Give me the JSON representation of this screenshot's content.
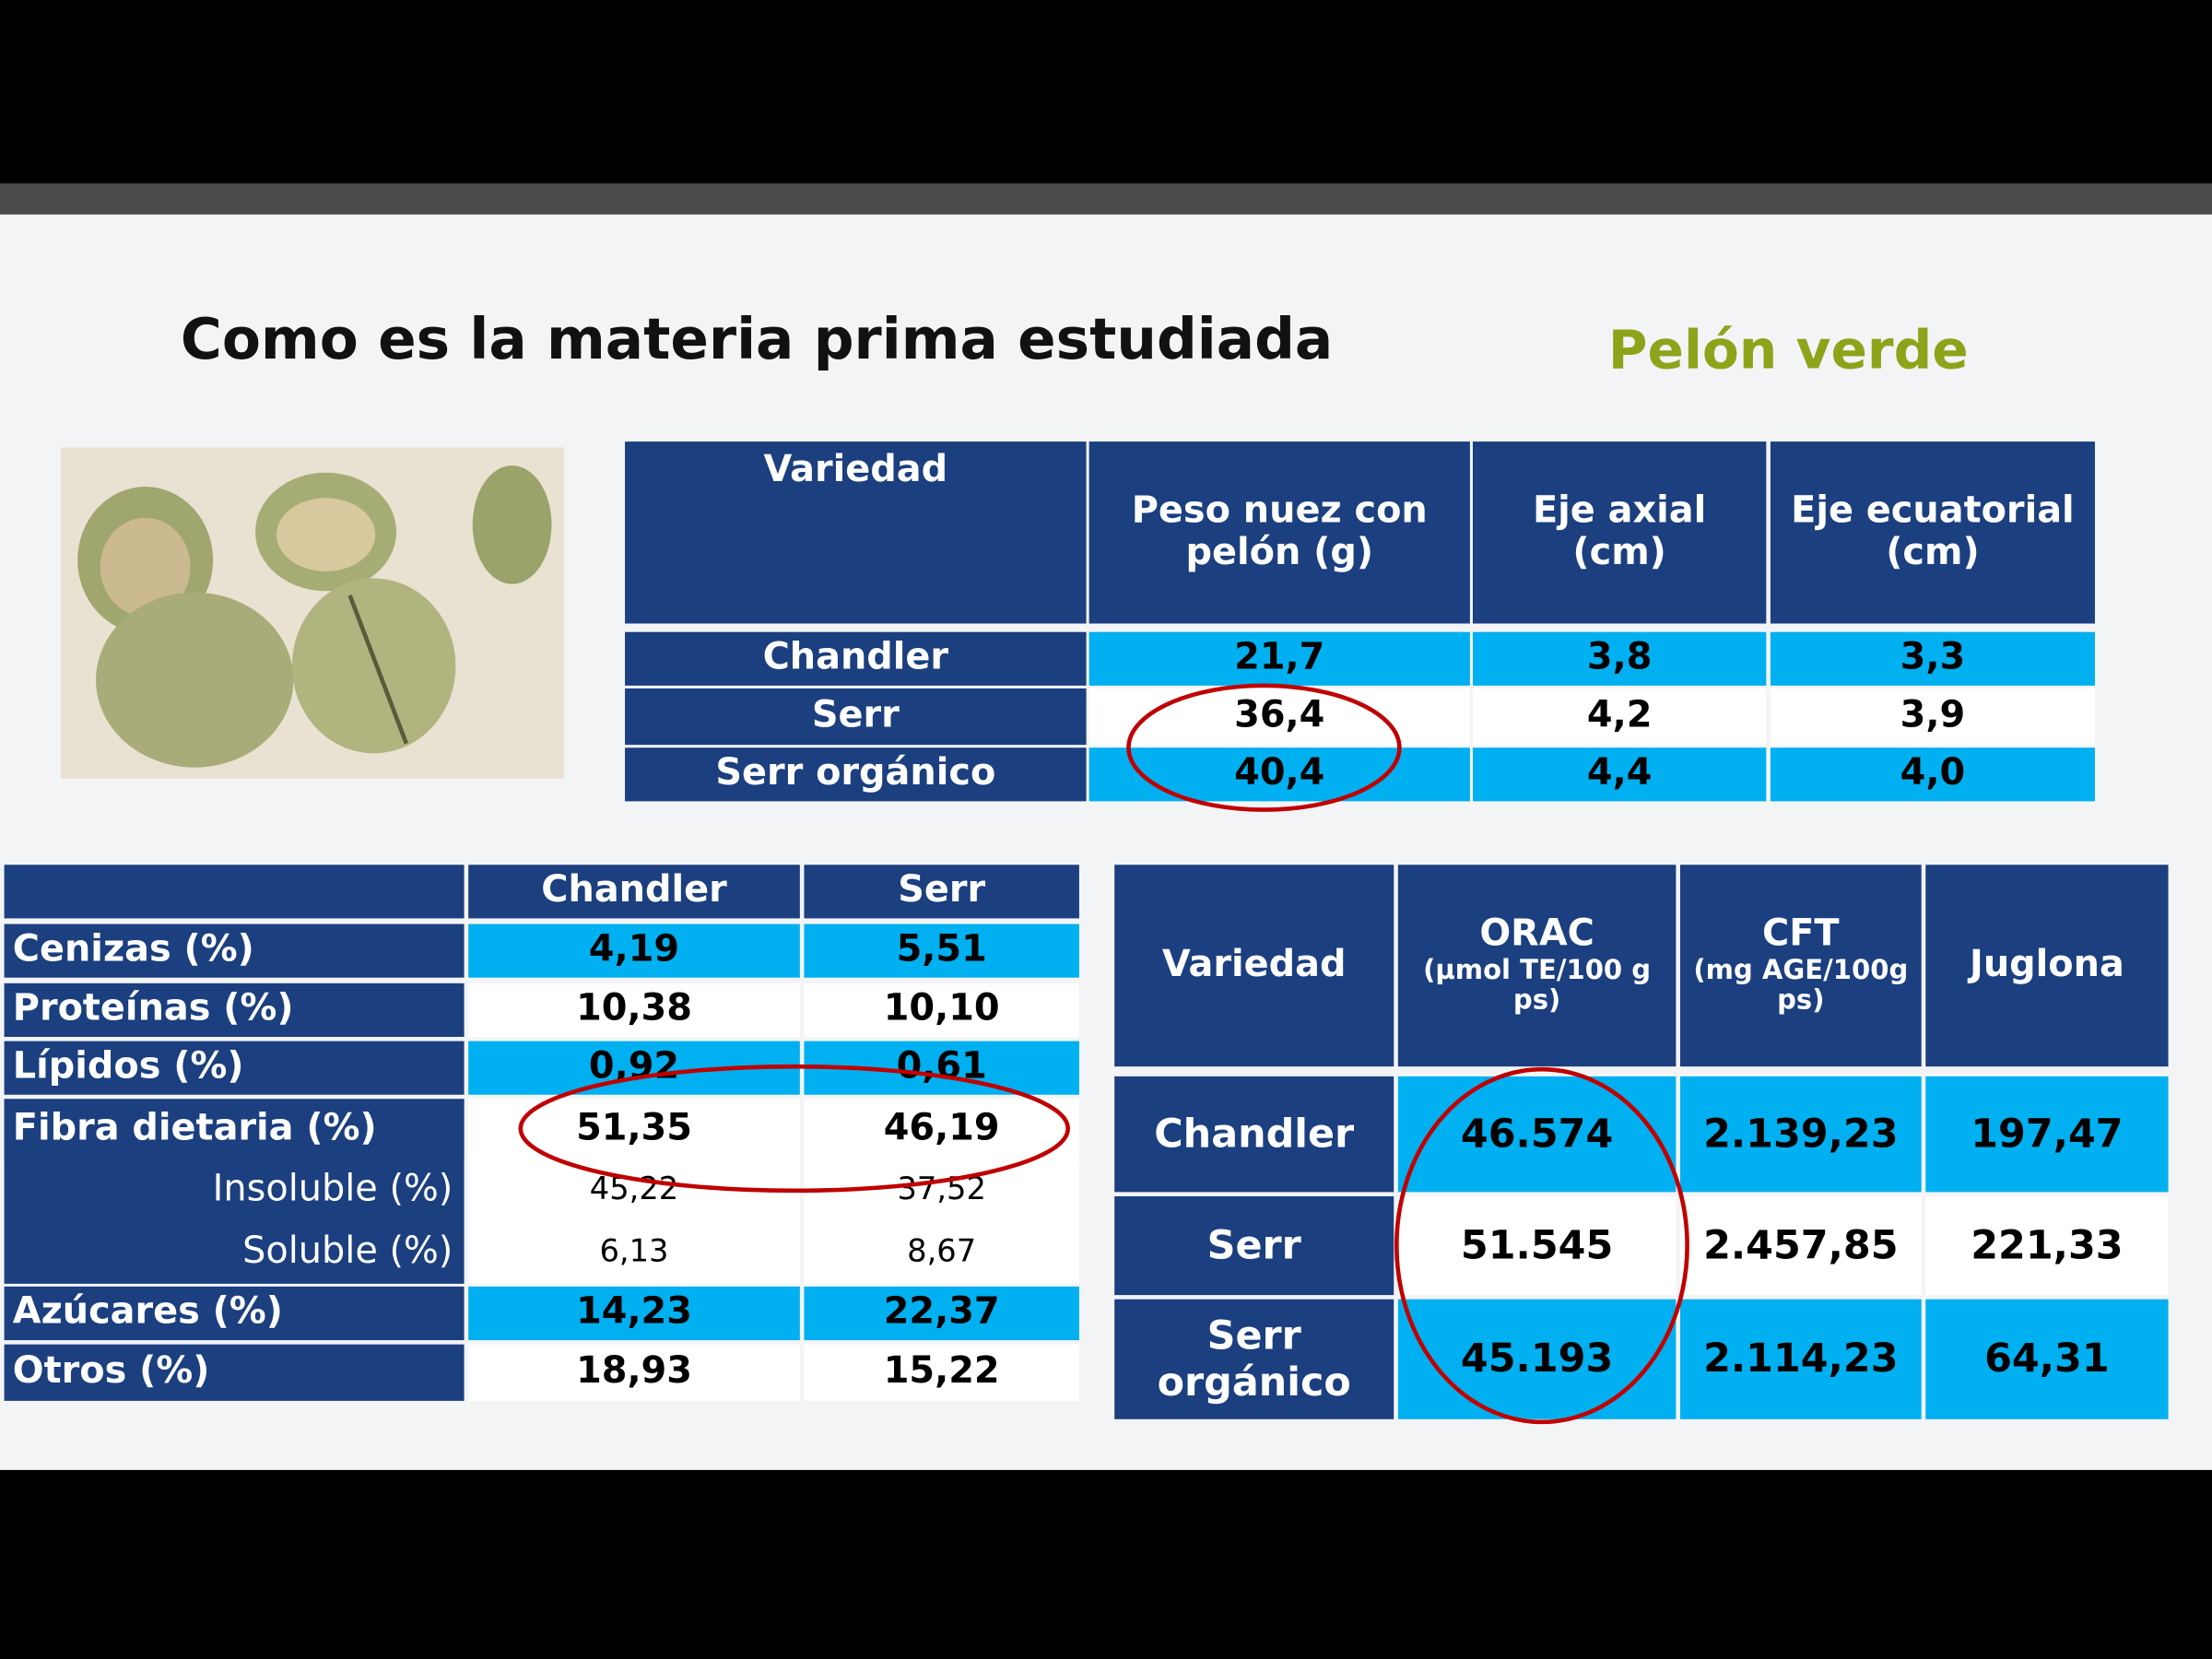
{
  "slide": {
    "title": "Como es la materia prima estudiada",
    "subtitle": "Pelón verde",
    "dimensions_table": {
      "header": [
        "Variedad",
        "Peso nuez con pelón (g)",
        "Eje axial (cm)",
        "Eje ecuatorial (cm)"
      ],
      "rows": [
        [
          "Chandler",
          "21,7",
          "3,8",
          "3,3"
        ],
        [
          "Serr",
          "36,4",
          "4,2",
          "3,9"
        ],
        [
          "Serr orgánico",
          "40,4",
          "4,4",
          "4,0"
        ]
      ]
    },
    "composition_table": {
      "header": [
        "Chandler",
        "Serr"
      ],
      "rows": [
        [
          "Cenizas (%)",
          "4,19",
          "5,51"
        ],
        [
          "Proteínas (%)",
          "10,38",
          "10,10"
        ],
        [
          "Lípidos (%)",
          "0,92",
          "0,61"
        ],
        [
          "Fibra dietaria (%)",
          "51,35",
          "46,19"
        ],
        [
          "Insoluble (%)",
          "45,22",
          "37,52"
        ],
        [
          "Soluble (%)",
          "6,13",
          "8,67"
        ],
        [
          "Azúcares (%)",
          "14,23",
          "22,37"
        ],
        [
          "Otros (%)",
          "18,93",
          "15,22"
        ]
      ]
    },
    "antioxidant_table": {
      "header": [
        {
          "title": "Variedad"
        },
        {
          "title": "ORAC",
          "unit": "(µmol TE/100 g ps)"
        },
        {
          "title": "CFT",
          "unit": "(mg AGE/100g ps)"
        },
        {
          "title": "Juglona"
        }
      ],
      "rows": [
        [
          "Chandler",
          "46.574",
          "2.139,23",
          "197,47"
        ],
        [
          "Serr",
          "51.545",
          "2.457,85",
          "221,33"
        ],
        [
          "Serr orgánico",
          "45.193",
          "2.114,23",
          "64,31"
        ]
      ]
    }
  }
}
